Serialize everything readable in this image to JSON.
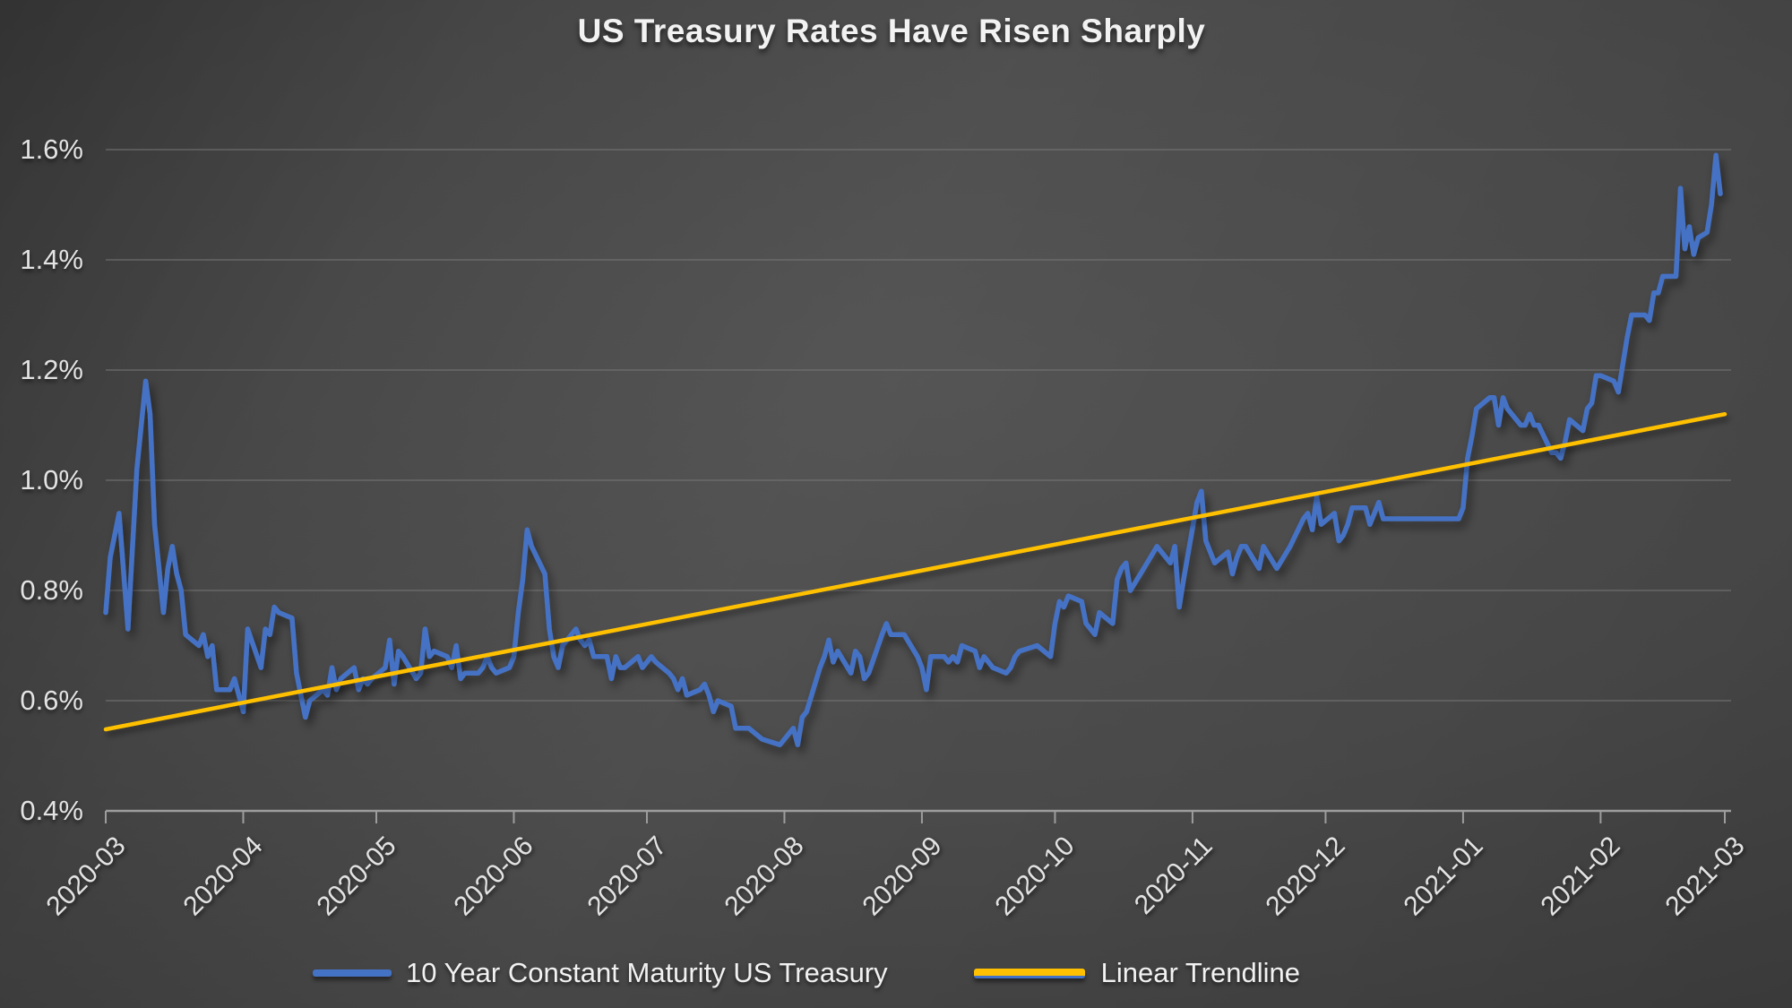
{
  "title": "US Treasury Rates Have Risen Sharply",
  "legend": {
    "series_label": "10 Year Constant Maturity US Treasury",
    "trendline_label": "Linear Trendline"
  },
  "colors": {
    "series_blue": "#4472C4",
    "trendline_gold": "#FFC000",
    "background_gray": "#474747",
    "text_light": "#e3e3e3",
    "gridline": "#7a7a7a",
    "axis_line": "#9d9d9d"
  },
  "chart_data": {
    "type": "line",
    "title": "US Treasury Rates Have Risen Sharply",
    "xlabel": "",
    "ylabel": "",
    "y_unit": "%",
    "ylim": [
      0.4,
      1.6
    ],
    "grid": "horizontal",
    "legend_position": "bottom",
    "y_ticks": [
      {
        "label": "0.4%",
        "value": 0.4
      },
      {
        "label": "0.6%",
        "value": 0.6
      },
      {
        "label": "0.8%",
        "value": 0.8
      },
      {
        "label": "1.0%",
        "value": 1.0
      },
      {
        "label": "1.2%",
        "value": 1.2
      },
      {
        "label": "1.4%",
        "value": 1.4
      },
      {
        "label": "1.6%",
        "value": 1.6
      }
    ],
    "x_ticks": [
      {
        "label": "2020-03",
        "day": 0
      },
      {
        "label": "2020-04",
        "day": 31
      },
      {
        "label": "2020-05",
        "day": 61
      },
      {
        "label": "2020-06",
        "day": 92
      },
      {
        "label": "2020-07",
        "day": 122
      },
      {
        "label": "2020-08",
        "day": 153
      },
      {
        "label": "2020-09",
        "day": 184
      },
      {
        "label": "2020-10",
        "day": 214
      },
      {
        "label": "2020-11",
        "day": 245
      },
      {
        "label": "2020-12",
        "day": 275
      },
      {
        "label": "2021-01",
        "day": 306
      },
      {
        "label": "2021-02",
        "day": 337
      },
      {
        "label": "2021-03",
        "day": 365
      }
    ],
    "x_axis_span_days": 365,
    "series": [
      {
        "name": "10 Year Constant Maturity US Treasury",
        "color": "#4472C4",
        "points": [
          [
            0,
            0.76
          ],
          [
            1,
            0.86
          ],
          [
            3,
            0.94
          ],
          [
            5,
            0.73
          ],
          [
            7,
            1.02
          ],
          [
            9,
            1.18
          ],
          [
            10,
            1.12
          ],
          [
            11,
            0.92
          ],
          [
            13,
            0.76
          ],
          [
            14,
            0.84
          ],
          [
            15,
            0.88
          ],
          [
            16,
            0.83
          ],
          [
            17,
            0.8
          ],
          [
            18,
            0.72
          ],
          [
            21,
            0.7
          ],
          [
            22,
            0.72
          ],
          [
            23,
            0.68
          ],
          [
            24,
            0.7
          ],
          [
            25,
            0.62
          ],
          [
            28,
            0.62
          ],
          [
            29,
            0.64
          ],
          [
            31,
            0.58
          ],
          [
            32,
            0.73
          ],
          [
            35,
            0.66
          ],
          [
            36,
            0.73
          ],
          [
            37,
            0.72
          ],
          [
            38,
            0.77
          ],
          [
            39,
            0.76
          ],
          [
            42,
            0.75
          ],
          [
            43,
            0.65
          ],
          [
            44,
            0.61
          ],
          [
            45,
            0.57
          ],
          [
            46,
            0.6
          ],
          [
            49,
            0.62
          ],
          [
            50,
            0.61
          ],
          [
            51,
            0.66
          ],
          [
            52,
            0.62
          ],
          [
            53,
            0.64
          ],
          [
            56,
            0.66
          ],
          [
            57,
            0.62
          ],
          [
            58,
            0.64
          ],
          [
            59,
            0.63
          ],
          [
            60,
            0.64
          ],
          [
            63,
            0.66
          ],
          [
            64,
            0.71
          ],
          [
            65,
            0.63
          ],
          [
            66,
            0.69
          ],
          [
            67,
            0.68
          ],
          [
            70,
            0.64
          ],
          [
            71,
            0.65
          ],
          [
            72,
            0.73
          ],
          [
            73,
            0.68
          ],
          [
            74,
            0.69
          ],
          [
            77,
            0.68
          ],
          [
            78,
            0.66
          ],
          [
            79,
            0.7
          ],
          [
            80,
            0.64
          ],
          [
            81,
            0.65
          ],
          [
            84,
            0.65
          ],
          [
            85,
            0.66
          ],
          [
            86,
            0.68
          ],
          [
            87,
            0.66
          ],
          [
            88,
            0.65
          ],
          [
            91,
            0.66
          ],
          [
            92,
            0.68
          ],
          [
            93,
            0.76
          ],
          [
            94,
            0.82
          ],
          [
            95,
            0.91
          ],
          [
            96,
            0.88
          ],
          [
            99,
            0.83
          ],
          [
            100,
            0.73
          ],
          [
            101,
            0.68
          ],
          [
            102,
            0.66
          ],
          [
            103,
            0.7
          ],
          [
            106,
            0.73
          ],
          [
            107,
            0.71
          ],
          [
            108,
            0.7
          ],
          [
            109,
            0.71
          ],
          [
            110,
            0.68
          ],
          [
            113,
            0.68
          ],
          [
            114,
            0.64
          ],
          [
            115,
            0.68
          ],
          [
            116,
            0.66
          ],
          [
            117,
            0.66
          ],
          [
            120,
            0.68
          ],
          [
            121,
            0.66
          ],
          [
            123,
            0.68
          ],
          [
            124,
            0.67
          ],
          [
            127,
            0.65
          ],
          [
            128,
            0.64
          ],
          [
            129,
            0.62
          ],
          [
            130,
            0.64
          ],
          [
            131,
            0.61
          ],
          [
            134,
            0.62
          ],
          [
            135,
            0.63
          ],
          [
            136,
            0.61
          ],
          [
            137,
            0.58
          ],
          [
            138,
            0.6
          ],
          [
            141,
            0.59
          ],
          [
            142,
            0.55
          ],
          [
            145,
            0.55
          ],
          [
            148,
            0.53
          ],
          [
            152,
            0.52
          ],
          [
            155,
            0.55
          ],
          [
            156,
            0.52
          ],
          [
            157,
            0.57
          ],
          [
            158,
            0.58
          ],
          [
            161,
            0.66
          ],
          [
            162,
            0.68
          ],
          [
            163,
            0.71
          ],
          [
            164,
            0.67
          ],
          [
            165,
            0.69
          ],
          [
            168,
            0.65
          ],
          [
            169,
            0.69
          ],
          [
            170,
            0.68
          ],
          [
            171,
            0.64
          ],
          [
            172,
            0.65
          ],
          [
            175,
            0.72
          ],
          [
            176,
            0.74
          ],
          [
            177,
            0.72
          ],
          [
            180,
            0.72
          ],
          [
            183,
            0.68
          ],
          [
            184,
            0.66
          ],
          [
            185,
            0.62
          ],
          [
            186,
            0.68
          ],
          [
            189,
            0.68
          ],
          [
            190,
            0.67
          ],
          [
            191,
            0.68
          ],
          [
            192,
            0.67
          ],
          [
            193,
            0.7
          ],
          [
            196,
            0.69
          ],
          [
            197,
            0.66
          ],
          [
            198,
            0.68
          ],
          [
            199,
            0.67
          ],
          [
            200,
            0.66
          ],
          [
            203,
            0.65
          ],
          [
            204,
            0.66
          ],
          [
            205,
            0.68
          ],
          [
            206,
            0.69
          ],
          [
            210,
            0.7
          ],
          [
            213,
            0.68
          ],
          [
            214,
            0.74
          ],
          [
            215,
            0.78
          ],
          [
            216,
            0.77
          ],
          [
            217,
            0.79
          ],
          [
            220,
            0.78
          ],
          [
            221,
            0.74
          ],
          [
            222,
            0.73
          ],
          [
            223,
            0.72
          ],
          [
            224,
            0.76
          ],
          [
            227,
            0.74
          ],
          [
            228,
            0.82
          ],
          [
            229,
            0.84
          ],
          [
            230,
            0.85
          ],
          [
            231,
            0.8
          ],
          [
            234,
            0.84
          ],
          [
            237,
            0.88
          ],
          [
            240,
            0.85
          ],
          [
            241,
            0.88
          ],
          [
            242,
            0.77
          ],
          [
            243,
            0.82
          ],
          [
            246,
            0.96
          ],
          [
            247,
            0.98
          ],
          [
            248,
            0.89
          ],
          [
            249,
            0.87
          ],
          [
            250,
            0.85
          ],
          [
            253,
            0.87
          ],
          [
            254,
            0.83
          ],
          [
            255,
            0.86
          ],
          [
            256,
            0.88
          ],
          [
            257,
            0.88
          ],
          [
            260,
            0.84
          ],
          [
            261,
            0.88
          ],
          [
            264,
            0.84
          ],
          [
            267,
            0.88
          ],
          [
            270,
            0.93
          ],
          [
            271,
            0.94
          ],
          [
            272,
            0.91
          ],
          [
            273,
            0.97
          ],
          [
            274,
            0.92
          ],
          [
            277,
            0.94
          ],
          [
            278,
            0.89
          ],
          [
            279,
            0.9
          ],
          [
            280,
            0.92
          ],
          [
            281,
            0.95
          ],
          [
            284,
            0.95
          ],
          [
            285,
            0.92
          ],
          [
            286,
            0.94
          ],
          [
            287,
            0.96
          ],
          [
            288,
            0.93
          ],
          [
            291,
            0.93
          ],
          [
            292,
            0.93
          ],
          [
            295,
            0.93
          ],
          [
            298,
            0.93
          ],
          [
            301,
            0.93
          ],
          [
            305,
            0.93
          ],
          [
            306,
            0.95
          ],
          [
            307,
            1.04
          ],
          [
            308,
            1.08
          ],
          [
            309,
            1.13
          ],
          [
            312,
            1.15
          ],
          [
            313,
            1.15
          ],
          [
            314,
            1.1
          ],
          [
            315,
            1.15
          ],
          [
            316,
            1.13
          ],
          [
            319,
            1.1
          ],
          [
            320,
            1.1
          ],
          [
            321,
            1.12
          ],
          [
            322,
            1.1
          ],
          [
            323,
            1.1
          ],
          [
            326,
            1.05
          ],
          [
            327,
            1.05
          ],
          [
            328,
            1.04
          ],
          [
            329,
            1.07
          ],
          [
            330,
            1.11
          ],
          [
            333,
            1.09
          ],
          [
            334,
            1.13
          ],
          [
            335,
            1.14
          ],
          [
            336,
            1.19
          ],
          [
            337,
            1.19
          ],
          [
            340,
            1.18
          ],
          [
            341,
            1.16
          ],
          [
            342,
            1.21
          ],
          [
            343,
            1.26
          ],
          [
            344,
            1.3
          ],
          [
            347,
            1.3
          ],
          [
            348,
            1.29
          ],
          [
            349,
            1.34
          ],
          [
            350,
            1.34
          ],
          [
            351,
            1.37
          ],
          [
            354,
            1.37
          ],
          [
            355,
            1.53
          ],
          [
            356,
            1.42
          ],
          [
            357,
            1.46
          ],
          [
            358,
            1.41
          ],
          [
            359,
            1.44
          ],
          [
            361,
            1.45
          ],
          [
            362,
            1.5
          ],
          [
            363,
            1.59
          ],
          [
            364,
            1.52
          ]
        ]
      },
      {
        "name": "Linear Trendline",
        "color": "#FFC000",
        "points": [
          [
            0,
            0.548
          ],
          [
            365,
            1.12
          ]
        ]
      }
    ]
  }
}
